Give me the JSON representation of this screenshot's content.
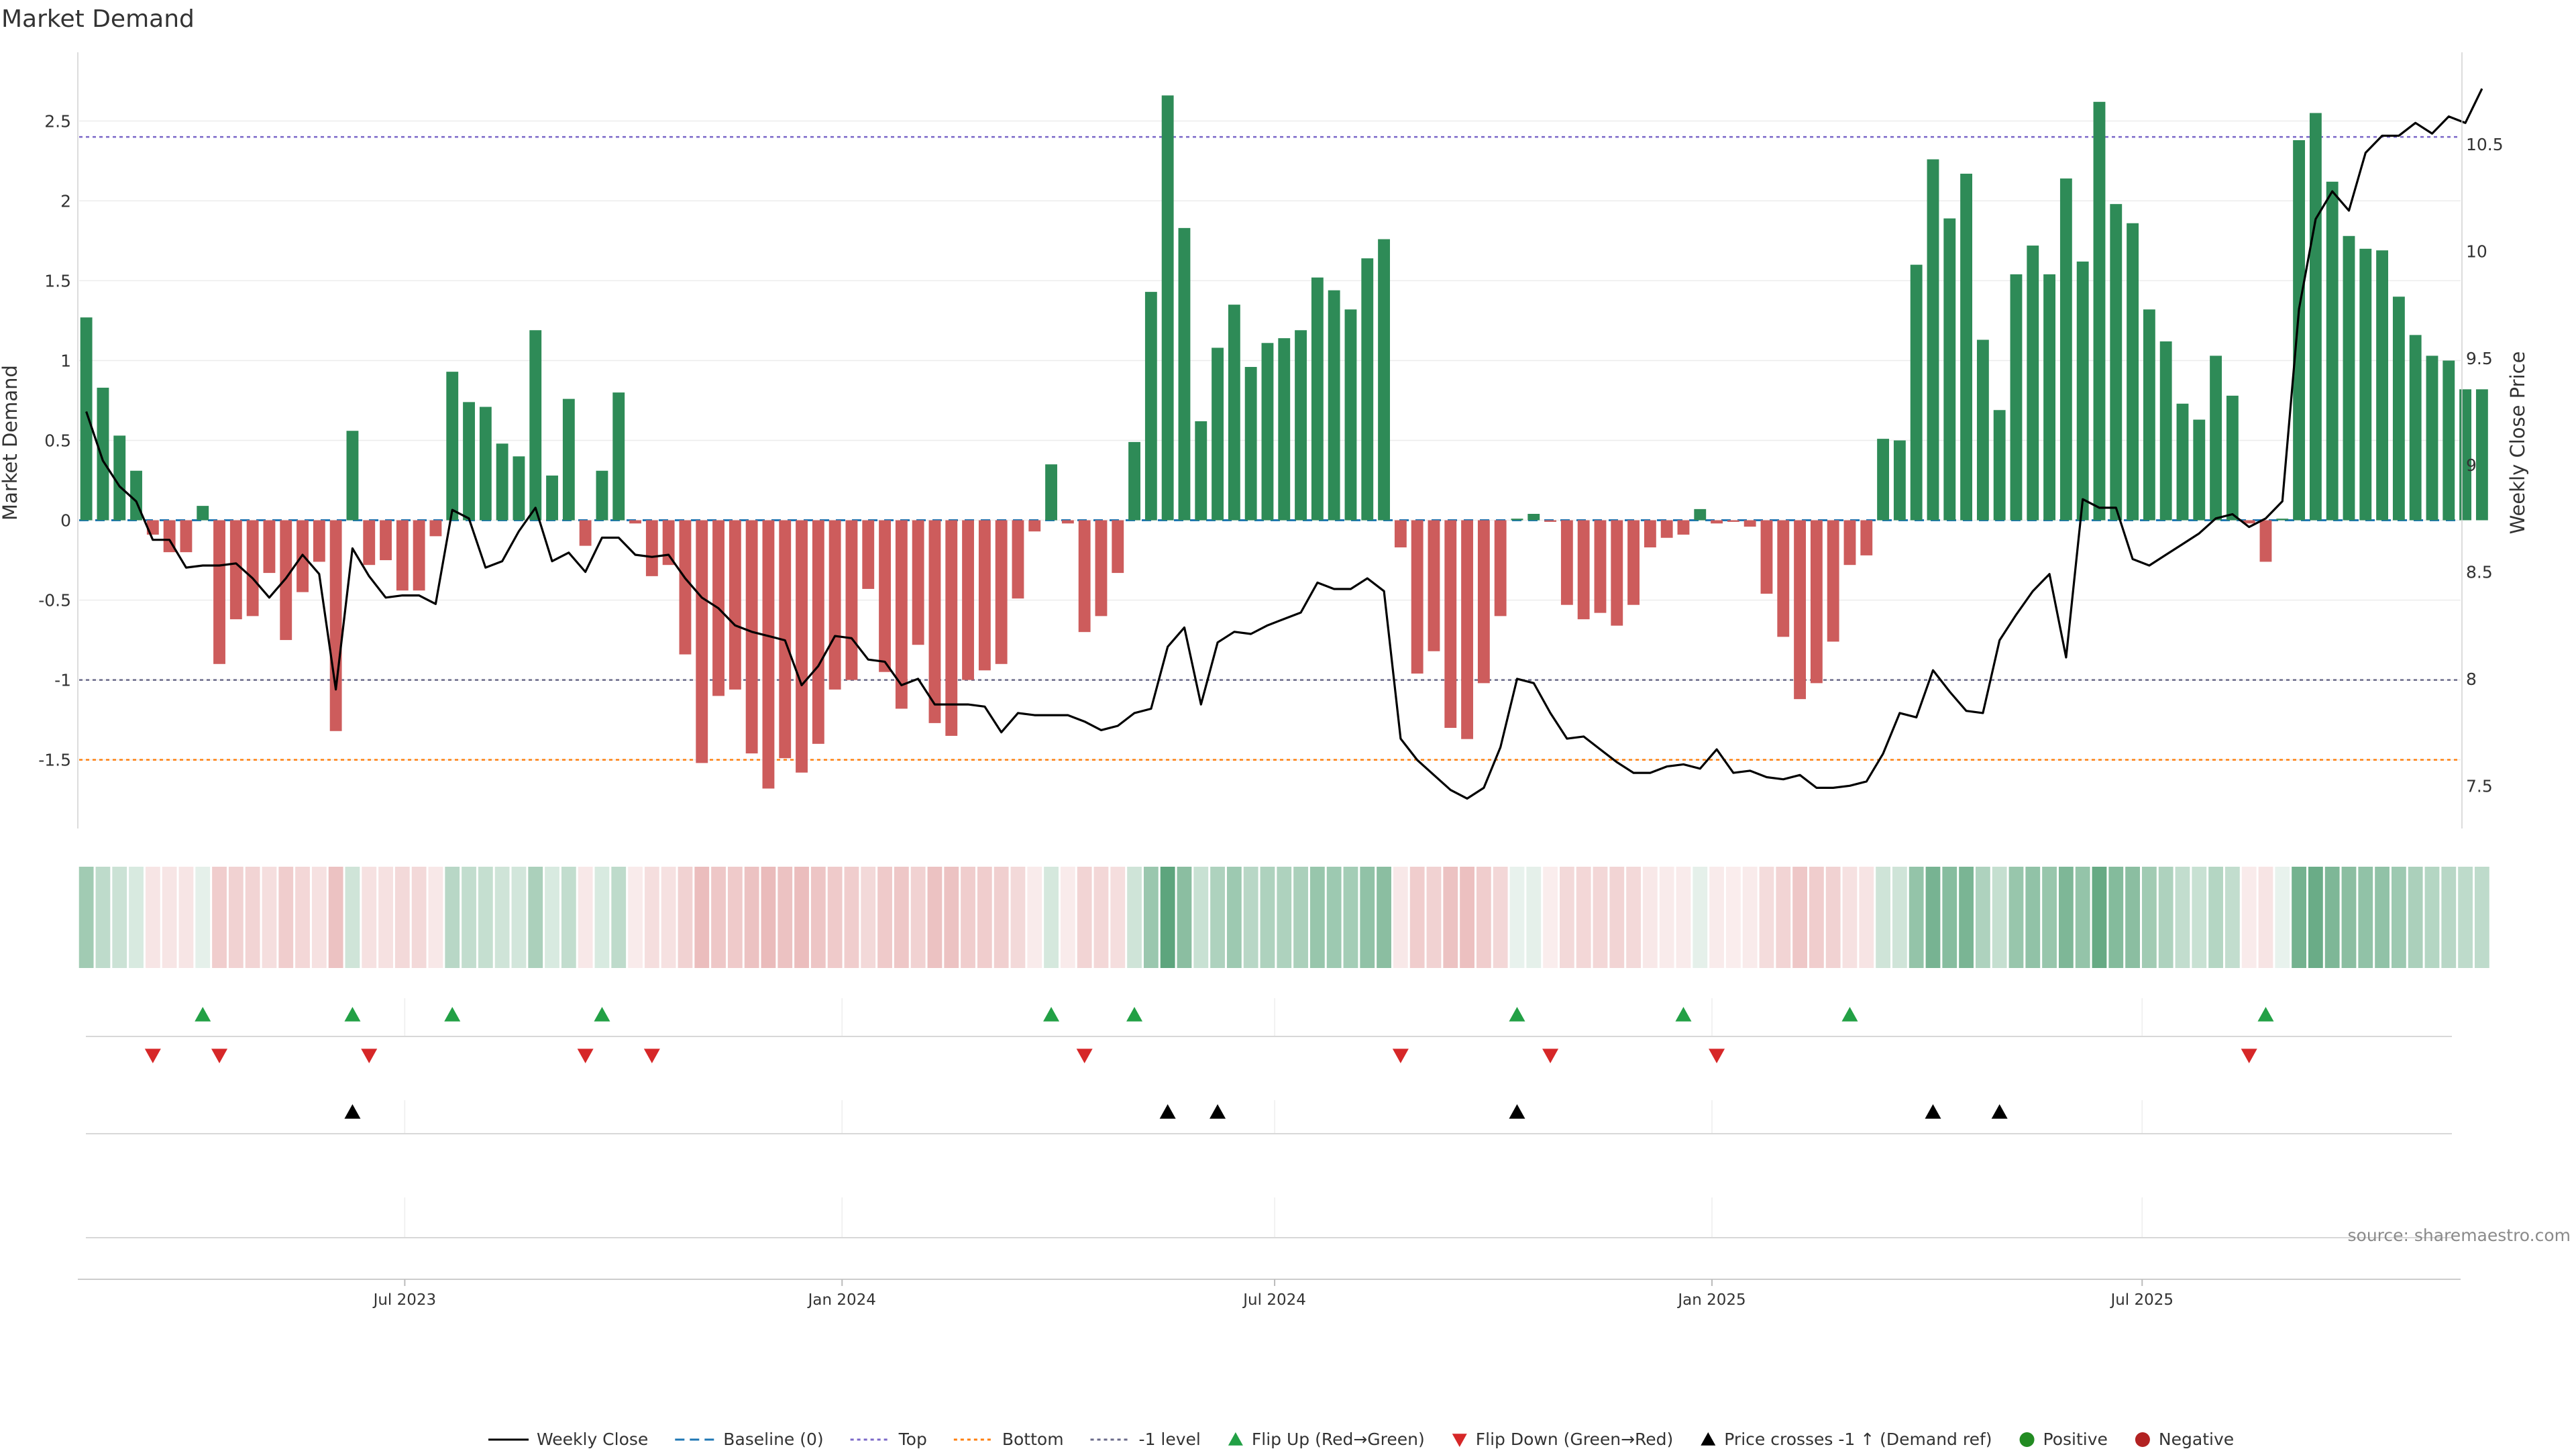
{
  "chart_data": {
    "type": "bar",
    "title": "Market Demand",
    "ylabel": "Market Demand",
    "y2label": "Weekly Close Price",
    "ylim": [
      -1.93,
      2.93
    ],
    "y2lim": [
      7.3,
      10.93
    ],
    "yticks": [
      -1.5,
      -1,
      -0.5,
      0,
      0.5,
      1,
      1.5,
      2,
      2.5
    ],
    "ytick_labels": [
      "-1.5",
      "-1",
      "-0.5",
      "0",
      "0.5",
      "1",
      "1.5",
      "2",
      "2.5"
    ],
    "y2ticks": [
      7.5,
      8,
      8.5,
      9,
      9.5,
      10,
      10.5
    ],
    "y2tick_labels": [
      "7.5",
      "8",
      "8.5",
      "9",
      "9.5",
      "10",
      "10.5"
    ],
    "x_start": "2023-02-17",
    "x_step_days": 7,
    "xlim": [
      "2023-02-14",
      "2025-11-12"
    ],
    "xticks": [
      {
        "date": "2023-07-01",
        "label": "Jul 2023"
      },
      {
        "date": "2024-01-01",
        "label": "Jan 2024"
      },
      {
        "date": "2024-07-01",
        "label": "Jul 2024"
      },
      {
        "date": "2025-01-01",
        "label": "Jan 2025"
      },
      {
        "date": "2025-07-01",
        "label": "Jul 2025"
      }
    ],
    "levels": {
      "top": 2.4,
      "minus_one": -1,
      "bottom": -1.5,
      "baseline": 0
    },
    "colors": {
      "positive": "#2e8b57",
      "negative": "#cd5c5c",
      "close": "#000000",
      "baseline": "#1f77b4",
      "top": "#7b68c8",
      "bottom": "#ff7f0e",
      "minus_one": "#6a6a8a",
      "flip_up": "#22a045",
      "flip_down": "#d62728",
      "cross": "#000000",
      "pos_dot": "#228b22",
      "neg_dot": "#b22222"
    },
    "demand": [
      1.27,
      0.83,
      0.53,
      0.31,
      -0.09,
      -0.2,
      -0.2,
      0.09,
      -0.9,
      -0.62,
      -0.6,
      -0.33,
      -0.75,
      -0.45,
      -0.26,
      -1.32,
      0.56,
      -0.28,
      -0.25,
      -0.44,
      -0.44,
      -0.1,
      0.93,
      0.74,
      0.71,
      0.48,
      0.4,
      1.19,
      0.28,
      0.76,
      -0.16,
      0.31,
      0.8,
      -0.02,
      -0.35,
      -0.28,
      -0.84,
      -1.52,
      -1.1,
      -1.06,
      -1.46,
      -1.68,
      -1.49,
      -1.58,
      -1.4,
      -1.06,
      -1.0,
      -0.43,
      -0.95,
      -1.18,
      -0.78,
      -1.27,
      -1.35,
      -1.0,
      -0.94,
      -0.9,
      -0.49,
      -0.07,
      0.35,
      -0.02,
      -0.7,
      -0.6,
      -0.33,
      0.49,
      1.43,
      2.66,
      1.83,
      0.62,
      1.08,
      1.35,
      0.96,
      1.11,
      1.14,
      1.19,
      1.52,
      1.44,
      1.32,
      1.64,
      1.76,
      -0.17,
      -0.96,
      -0.82,
      -1.3,
      -1.37,
      -1.02,
      -0.6,
      0.01,
      0.04,
      -0.01,
      -0.53,
      -0.62,
      -0.58,
      -0.66,
      -0.53,
      -0.17,
      -0.11,
      -0.09,
      0.07,
      -0.02,
      -0.01,
      -0.04,
      -0.46,
      -0.73,
      -1.12,
      -1.02,
      -0.76,
      -0.28,
      -0.22,
      0.51,
      0.5,
      1.6,
      2.26,
      1.89,
      2.17,
      1.13,
      0.69,
      1.54,
      1.72,
      1.54,
      2.14,
      1.62,
      2.62,
      1.98,
      1.86,
      1.32,
      1.12,
      0.73,
      0.63,
      1.03,
      0.78,
      -0.02,
      -0.26,
      0.01,
      2.38,
      2.55,
      2.12,
      1.78,
      1.7,
      1.69,
      1.4,
      1.16,
      1.03,
      1.0,
      0.82,
      0.82
    ],
    "close": [
      9.25,
      9.02,
      8.9,
      8.83,
      8.65,
      8.65,
      8.52,
      8.53,
      8.53,
      8.54,
      8.47,
      8.38,
      8.47,
      8.58,
      8.49,
      7.95,
      8.61,
      8.48,
      8.38,
      8.39,
      8.39,
      8.35,
      8.79,
      8.75,
      8.52,
      8.55,
      8.69,
      8.8,
      8.55,
      8.59,
      8.5,
      8.66,
      8.66,
      8.58,
      8.57,
      8.58,
      8.47,
      8.38,
      8.33,
      8.25,
      8.22,
      8.2,
      8.18,
      7.97,
      8.06,
      8.2,
      8.19,
      8.09,
      8.08,
      7.97,
      8.0,
      7.88,
      7.88,
      7.88,
      7.87,
      7.75,
      7.84,
      7.83,
      7.83,
      7.83,
      7.8,
      7.76,
      7.78,
      7.84,
      7.86,
      8.15,
      8.24,
      7.88,
      8.17,
      8.22,
      8.21,
      8.25,
      8.28,
      8.31,
      8.45,
      8.42,
      8.42,
      8.47,
      8.41,
      7.72,
      7.62,
      7.55,
      7.48,
      7.44,
      7.49,
      7.68,
      8.0,
      7.98,
      7.84,
      7.72,
      7.73,
      7.67,
      7.61,
      7.56,
      7.56,
      7.59,
      7.6,
      7.58,
      7.67,
      7.56,
      7.57,
      7.54,
      7.53,
      7.55,
      7.49,
      7.49,
      7.5,
      7.52,
      7.65,
      7.84,
      7.82,
      8.04,
      7.94,
      7.85,
      7.84,
      8.18,
      8.3,
      8.41,
      8.49,
      8.1,
      8.84,
      8.8,
      8.8,
      8.56,
      8.53,
      8.58,
      8.63,
      8.68,
      8.75,
      8.77,
      8.71,
      8.75,
      8.83,
      9.73,
      10.15,
      10.28,
      10.19,
      10.46,
      10.54,
      10.54,
      10.6,
      10.55,
      10.63,
      10.6,
      10.76
    ],
    "heat_strip": [
      0.29,
      0.2,
      0.16,
      0.12,
      -0.1,
      -0.1,
      -0.1,
      0.08,
      -0.2,
      -0.18,
      -0.17,
      -0.13,
      -0.2,
      -0.16,
      -0.12,
      -0.24,
      0.15,
      -0.12,
      -0.12,
      -0.15,
      -0.15,
      -0.09,
      0.22,
      0.19,
      0.18,
      0.15,
      0.14,
      0.26,
      0.12,
      0.19,
      -0.09,
      0.12,
      0.2,
      -0.08,
      -0.13,
      -0.12,
      -0.18,
      -0.26,
      -0.22,
      -0.21,
      -0.24,
      -0.27,
      -0.24,
      -0.26,
      -0.23,
      -0.21,
      -0.2,
      -0.15,
      -0.21,
      -0.22,
      -0.18,
      -0.24,
      -0.24,
      -0.2,
      -0.2,
      -0.19,
      -0.15,
      -0.08,
      0.13,
      -0.08,
      -0.17,
      -0.16,
      -0.13,
      0.15,
      0.31,
      0.5,
      0.36,
      0.17,
      0.25,
      0.3,
      0.22,
      0.25,
      0.25,
      0.26,
      0.32,
      0.3,
      0.28,
      0.34,
      0.36,
      -0.09,
      -0.2,
      -0.18,
      -0.24,
      -0.25,
      -0.2,
      -0.16,
      0.07,
      0.08,
      -0.07,
      -0.15,
      -0.16,
      -0.16,
      -0.17,
      -0.15,
      -0.09,
      -0.08,
      -0.08,
      0.08,
      -0.08,
      -0.07,
      -0.08,
      -0.14,
      -0.17,
      -0.22,
      -0.2,
      -0.18,
      -0.12,
      -0.11,
      0.15,
      0.15,
      0.33,
      0.42,
      0.37,
      0.41,
      0.25,
      0.18,
      0.32,
      0.34,
      0.32,
      0.4,
      0.33,
      0.47,
      0.38,
      0.36,
      0.29,
      0.25,
      0.19,
      0.17,
      0.23,
      0.19,
      -0.08,
      -0.11,
      0.07,
      0.43,
      0.46,
      0.4,
      0.36,
      0.34,
      0.34,
      0.3,
      0.26,
      0.23,
      0.22,
      0.2,
      0.2
    ],
    "flip_up": [
      7,
      16,
      22,
      31,
      58,
      63,
      86,
      96,
      106,
      131
    ],
    "flip_down": [
      4,
      8,
      17,
      30,
      34,
      60,
      79,
      88,
      98,
      130
    ],
    "price_cross": [
      16,
      65,
      68,
      86,
      111,
      115
    ],
    "legend": [
      {
        "key": "close",
        "label": "Weekly Close",
        "kind": "line"
      },
      {
        "key": "baseline",
        "label": "Baseline (0)",
        "kind": "dash"
      },
      {
        "key": "top",
        "label": "Top",
        "kind": "dot"
      },
      {
        "key": "bottom",
        "label": "Bottom",
        "kind": "dot"
      },
      {
        "key": "minus_one",
        "label": "-1 level",
        "kind": "dot"
      },
      {
        "key": "flip_up",
        "label": "Flip Up (Red→Green)",
        "kind": "tri-up"
      },
      {
        "key": "flip_down",
        "label": "Flip Down (Green→Red)",
        "kind": "tri-down"
      },
      {
        "key": "cross",
        "label": "Price crosses -1 ↑ (Demand ref)",
        "kind": "tri-up"
      },
      {
        "key": "pos_dot",
        "label": "Positive",
        "kind": "circle"
      },
      {
        "key": "neg_dot",
        "label": "Negative",
        "kind": "circle"
      }
    ],
    "source": "source: sharemaestro.com"
  }
}
